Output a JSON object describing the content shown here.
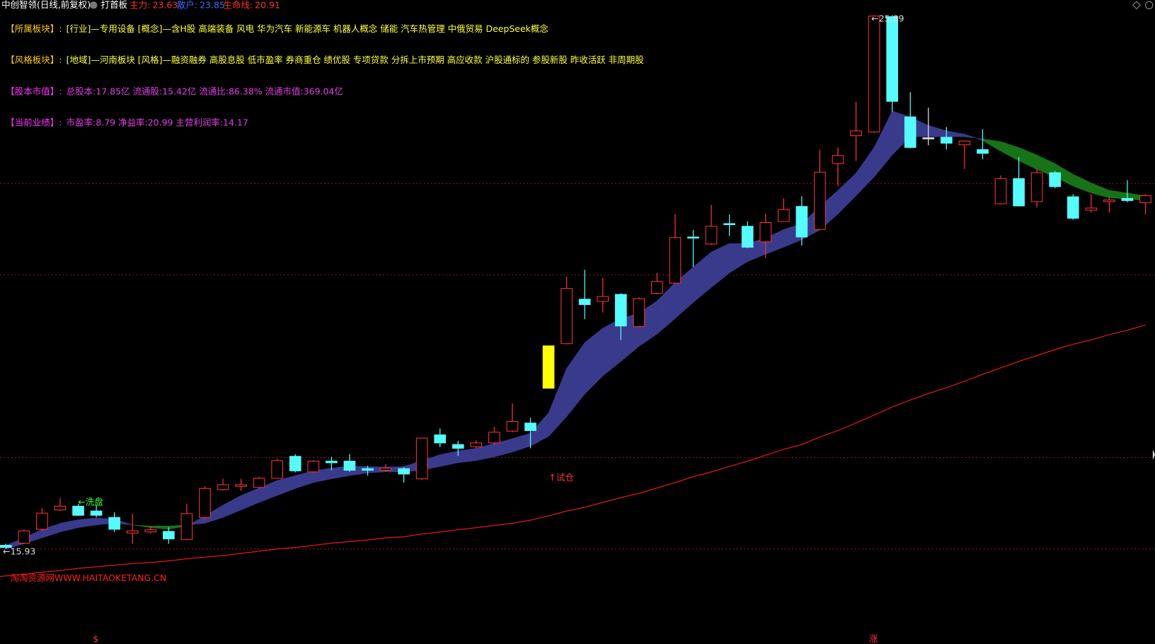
{
  "app": {
    "title": "中创智领(日线,前复权)",
    "tab": "打首板",
    "indicators": [
      {
        "name": "主力:",
        "value": 23.63,
        "color": "#ff3232"
      },
      {
        "name": "散户:",
        "value": 23.85,
        "color": "#3a6bff"
      },
      {
        "name": "生命线:",
        "value": 20.91,
        "color": "#ff3232"
      }
    ],
    "info": [
      {
        "label": "【所属板块】:",
        "text": "[行业]—专用设备 [概念]—含H股 高端装备 风电 华为汽车 新能源车 机器人概念 储能 汽车热管理 中俄贸易 DeepSeek概念",
        "label_color": "#ffcc00",
        "color": "#ffff33"
      },
      {
        "label": "【风格板块】:",
        "text": "[地域]—河南板块 [风格]—融资融券 高股息股 低市盈率 券商重仓 绩优股 专项贷款 分拆上市预期 高应收款 沪股通标的 参股新股 昨收活跃 非周期股",
        "label_color": "#ffcc00",
        "color": "#ffff33"
      },
      {
        "label": "【股本市值】:",
        "text": "总股本:17.85亿 流通股:15.42亿 流通比:86.38% 流通市值:369.04亿",
        "label_color": "#ff33ff",
        "color": "#e040e0"
      },
      {
        "label": "【当前业绩】:",
        "text": "市盈率:8.79 净益率:20.99 主营利润率:14.17",
        "label_color": "#ff33ff",
        "color": "#e040e0"
      }
    ]
  },
  "chart_data": {
    "type": "candlestick",
    "ylim": [
      14.16,
      26.17
    ],
    "up_color": "#ff3232",
    "band_up_color": "#3a3a8c",
    "band_down_color": "#167316",
    "line_color": "#e01818",
    "open": [
      16.0,
      16.04,
      16.3,
      16.66,
      16.73,
      16.64,
      16.52,
      16.23,
      16.25,
      16.26,
      16.11,
      16.52,
      17.04,
      17.1,
      17.08,
      17.25,
      17.66,
      17.37,
      17.57,
      17.57,
      17.43,
      17.4,
      17.43,
      17.24,
      18.06,
      17.88,
      17.84,
      17.91,
      18.13,
      18.28,
      18.93,
      19.76,
      20.59,
      20.55,
      20.68,
      20.08,
      20.7,
      20.89,
      21.75,
      21.62,
      22.0,
      21.95,
      21.66,
      22.04,
      22.32,
      21.89,
      23.12,
      23.64,
      23.71,
      25.86,
      23.99,
      23.6,
      23.61,
      23.47,
      23.38,
      22.37,
      22.84,
      22.41,
      22.95,
      22.5,
      22.25,
      22.41,
      22.47,
      22.39
    ],
    "high": [
      16.03,
      16.3,
      16.69,
      16.88,
      16.77,
      16.74,
      16.62,
      16.59,
      16.36,
      16.34,
      16.78,
      17.1,
      17.24,
      17.24,
      17.28,
      17.61,
      17.7,
      17.59,
      17.65,
      17.7,
      17.48,
      17.51,
      17.46,
      18.0,
      18.18,
      17.95,
      17.96,
      18.21,
      18.65,
      18.38,
      19.72,
      21.01,
      21.14,
      20.99,
      20.7,
      20.63,
      21.08,
      22.18,
      21.88,
      22.35,
      22.17,
      22.04,
      22.18,
      22.47,
      22.51,
      23.38,
      23.42,
      24.27,
      25.89,
      25.89,
      24.45,
      24.16,
      23.8,
      23.55,
      23.76,
      22.9,
      23.24,
      23.03,
      22.98,
      22.55,
      22.55,
      22.48,
      22.81,
      22.55
    ],
    "low": [
      15.93,
      16.03,
      16.27,
      16.64,
      16.55,
      16.52,
      16.25,
      16.03,
      16.22,
      16.03,
      16.1,
      16.49,
      17.02,
      17.02,
      17.06,
      17.24,
      17.36,
      17.36,
      17.4,
      17.37,
      17.3,
      17.37,
      17.17,
      17.22,
      17.83,
      17.67,
      17.81,
      17.88,
      18.11,
      17.81,
      18.93,
      19.75,
      20.22,
      20.34,
      19.83,
      20.07,
      20.68,
      20.88,
      21.19,
      21.6,
      21.77,
      21.54,
      21.36,
      22.03,
      21.59,
      21.88,
      22.7,
      23.17,
      23.69,
      24.08,
      23.4,
      23.46,
      23.38,
      23.02,
      23.2,
      22.36,
      22.32,
      22.3,
      22.66,
      22.07,
      22.21,
      22.2,
      22.4,
      22.17
    ],
    "close": [
      15.96,
      16.27,
      16.6,
      16.73,
      16.56,
      16.56,
      16.3,
      16.27,
      16.29,
      16.12,
      16.59,
      17.06,
      17.13,
      17.13,
      17.25,
      17.58,
      17.39,
      17.57,
      17.54,
      17.4,
      17.4,
      17.44,
      17.33,
      18.0,
      17.91,
      17.81,
      17.91,
      18.11,
      18.31,
      18.14,
      19.72,
      20.79,
      20.49,
      20.64,
      20.09,
      20.6,
      20.92,
      21.74,
      21.73,
      21.95,
      21.98,
      21.56,
      22.02,
      22.26,
      21.75,
      22.96,
      23.27,
      23.73,
      25.87,
      24.28,
      23.42,
      23.58,
      23.5,
      23.54,
      23.31,
      22.84,
      22.33,
      22.95,
      22.69,
      22.1,
      22.29,
      22.44,
      22.43,
      22.52
    ],
    "colors": [
      "#54fcfc",
      "#ff3232",
      "#ff3232",
      "#ff3232",
      "#54fcfc",
      "#54fcfc",
      "#54fcfc",
      "#ff3232",
      "#ff3232",
      "#54fcfc",
      "#ff3232",
      "#ff3232",
      "#ff3232",
      "#ff3232",
      "#ff3232",
      "#ff3232",
      "#54fcfc",
      "#ff3232",
      "#54fcfc",
      "#54fcfc",
      "#54fcfc",
      "#ff3232",
      "#54fcfc",
      "#ff3232",
      "#54fcfc",
      "#54fcfc",
      "#ff3232",
      "#ff3232",
      "#ff3232",
      "#54fcfc",
      "#ffff00",
      "#ff3232",
      "#54fcfc",
      "#ff3232",
      "#54fcfc",
      "#ff3232",
      "#ff3232",
      "#ff3232",
      "#54fcfc",
      "#ff3232",
      "#54fcfc",
      "#54fcfc",
      "#ff3232",
      "#ff3232",
      "#54fcfc",
      "#ff3232",
      "#ff3232",
      "#ff3232",
      "#ff3232",
      "#54fcfc",
      "#54fcfc",
      "#e0e0e0",
      "#54fcfc",
      "#ff3232",
      "#54fcfc",
      "#ff3232",
      "#54fcfc",
      "#ff3232",
      "#54fcfc",
      "#54fcfc",
      "#ff3232",
      "#ff3232",
      "#54fcfc",
      "#ff3232"
    ],
    "band_fast": [
      16.0,
      16.14,
      16.3,
      16.41,
      16.48,
      16.51,
      16.49,
      16.38,
      16.33,
      16.3,
      16.36,
      16.55,
      16.75,
      16.93,
      17.07,
      17.21,
      17.3,
      17.39,
      17.44,
      17.48,
      17.47,
      17.46,
      17.47,
      17.58,
      17.69,
      17.76,
      17.81,
      17.9,
      17.99,
      18.09,
      18.47,
      19.3,
      19.78,
      20.05,
      20.23,
      20.33,
      20.56,
      20.9,
      21.19,
      21.47,
      21.63,
      21.63,
      21.73,
      21.89,
      22.0,
      22.32,
      22.62,
      22.94,
      23.42,
      24.1,
      23.99,
      23.83,
      23.73,
      23.67,
      23.55,
      23.35,
      23.17,
      23.01,
      22.87,
      22.7,
      22.57,
      22.48,
      22.46,
      22.43
    ],
    "band_slow": [
      15.93,
      16.03,
      16.14,
      16.25,
      16.33,
      16.38,
      16.41,
      16.38,
      16.36,
      16.36,
      16.38,
      16.41,
      16.52,
      16.66,
      16.8,
      16.93,
      17.06,
      17.17,
      17.24,
      17.3,
      17.35,
      17.37,
      17.37,
      17.4,
      17.47,
      17.54,
      17.58,
      17.65,
      17.74,
      17.85,
      18.03,
      18.4,
      18.82,
      19.16,
      19.43,
      19.71,
      19.94,
      20.23,
      20.53,
      20.81,
      21.08,
      21.29,
      21.43,
      21.56,
      21.7,
      21.88,
      22.18,
      22.52,
      22.87,
      23.28,
      23.62,
      23.62,
      23.62,
      23.62,
      23.58,
      23.53,
      23.42,
      23.28,
      23.12,
      22.92,
      22.76,
      22.62,
      22.57,
      22.52
    ],
    "line": [
      15.42,
      15.46,
      15.5,
      15.53,
      15.57,
      15.6,
      15.63,
      15.66,
      15.68,
      15.71,
      15.75,
      15.78,
      15.81,
      15.85,
      15.89,
      15.93,
      15.96,
      16.0,
      16.04,
      16.07,
      16.1,
      16.14,
      16.16,
      16.21,
      16.25,
      16.29,
      16.33,
      16.37,
      16.41,
      16.47,
      16.55,
      16.64,
      16.71,
      16.8,
      16.89,
      16.97,
      17.07,
      17.17,
      17.28,
      17.37,
      17.47,
      17.57,
      17.68,
      17.79,
      17.88,
      18.02,
      18.14,
      18.28,
      18.43,
      18.58,
      18.71,
      18.83,
      18.94,
      19.06,
      19.19,
      19.31,
      19.43,
      19.54,
      19.65,
      19.75,
      19.83,
      19.93,
      20.01,
      20.11
    ],
    "annotations": [
      {
        "text": "←15.93",
        "color": "#dddddd"
      },
      {
        "text": "←25.89",
        "color": "#dddddd"
      },
      {
        "text": "←洗盘",
        "color": "#33ff33"
      },
      {
        "text": "↑试仓",
        "color": "#ff3232"
      },
      {
        "text": "$",
        "color": "#ff3232"
      },
      {
        "text": "涨",
        "color": "#ff3232"
      },
      {
        "text": "淘淘资源网WWW.HAITAOKETANG.CN",
        "color": "#ff2020"
      }
    ]
  }
}
